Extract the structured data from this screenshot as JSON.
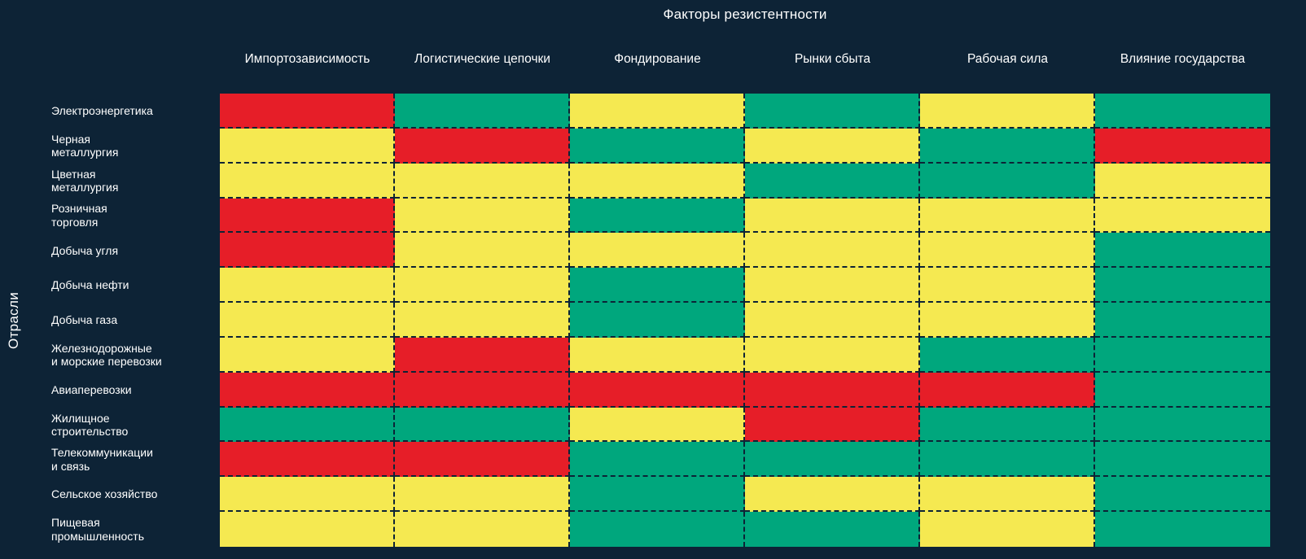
{
  "title": "Факторы резистентности",
  "colors": {
    "background": "#0d2336",
    "text": "#ffffff",
    "red": "#e61e28",
    "yellow": "#f5e951",
    "green": "#00a77d"
  },
  "chart_data": {
    "type": "heatmap",
    "title": "Факторы резистентности",
    "ylabel": "Отрасли",
    "xlabel": "",
    "legend_position": "none",
    "grid": "dashed-separators",
    "color_levels": [
      "red",
      "yellow",
      "green"
    ],
    "columns": [
      "Импортозависимость",
      "Логистические цепочки",
      "Фондирование",
      "Рынки сбыта",
      "Рабочая сила",
      "Влияние государства"
    ],
    "rows": [
      "Электроэнергетика",
      "Черная\nметаллургия",
      "Цветная\nметаллургия",
      "Розничная\nторговля",
      "Добыча угля",
      "Добыча нефти",
      "Добыча газа",
      "Железнодорожные\nи морские перевозки",
      "Авиаперевозки",
      "Жилищное\nстроительство",
      "Телекоммуникации\nи связь",
      "Сельское хозяйство",
      "Пищевая\nпромышленность"
    ],
    "values": [
      [
        "red",
        "green",
        "yellow",
        "green",
        "yellow",
        "green"
      ],
      [
        "yellow",
        "red",
        "green",
        "yellow",
        "green",
        "red"
      ],
      [
        "yellow",
        "yellow",
        "yellow",
        "green",
        "green",
        "yellow"
      ],
      [
        "red",
        "yellow",
        "green",
        "yellow",
        "yellow",
        "yellow"
      ],
      [
        "red",
        "yellow",
        "yellow",
        "yellow",
        "yellow",
        "green"
      ],
      [
        "yellow",
        "yellow",
        "green",
        "yellow",
        "yellow",
        "green"
      ],
      [
        "yellow",
        "yellow",
        "green",
        "yellow",
        "yellow",
        "green"
      ],
      [
        "yellow",
        "red",
        "yellow",
        "yellow",
        "green",
        "green"
      ],
      [
        "red",
        "red",
        "red",
        "red",
        "red",
        "green"
      ],
      [
        "green",
        "green",
        "yellow",
        "red",
        "green",
        "green"
      ],
      [
        "red",
        "red",
        "green",
        "green",
        "green",
        "green"
      ],
      [
        "yellow",
        "yellow",
        "green",
        "yellow",
        "yellow",
        "green"
      ],
      [
        "yellow",
        "yellow",
        "green",
        "green",
        "yellow",
        "green"
      ]
    ]
  }
}
